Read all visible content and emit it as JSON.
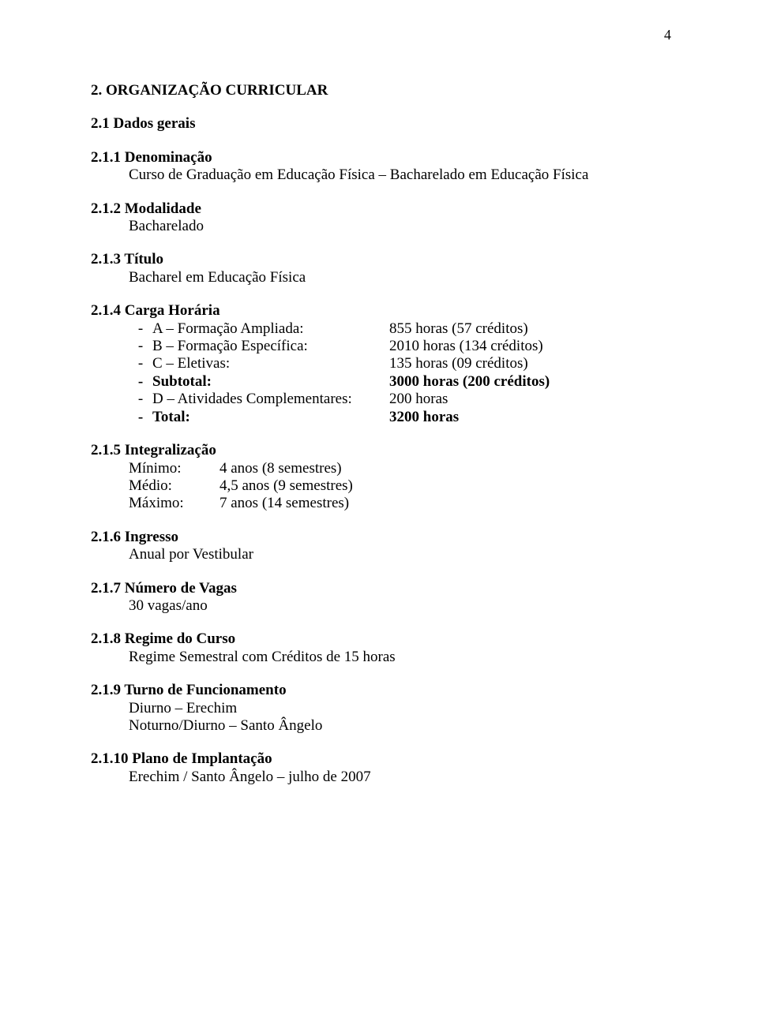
{
  "page_number": "4",
  "title": "2. ORGANIZAÇÃO CURRICULAR",
  "s21": {
    "heading": "2.1 Dados gerais"
  },
  "s211": {
    "heading": "2.1.1 Denominação",
    "text": "Curso de Graduação em Educação Física – Bacharelado em Educação Física"
  },
  "s212": {
    "heading": "2.1.2 Modalidade",
    "text": "Bacharelado"
  },
  "s213": {
    "heading": "2.1.3 Título",
    "text": "Bacharel em Educação Física"
  },
  "s214": {
    "heading": "2.1.4 Carga Horária",
    "rows": [
      {
        "dash": "-",
        "label": "A – Formação Ampliada:",
        "value": "855 horas (57 créditos)"
      },
      {
        "dash": "-",
        "label": "B – Formação Específica:",
        "value": "2010 horas (134 créditos)"
      },
      {
        "dash": "-",
        "label": "C – Eletivas:",
        "value": "135 horas (09 créditos)"
      }
    ],
    "subtotal": {
      "dash": "-",
      "label": "Subtotal:",
      "value": "3000 horas (200 créditos)"
    },
    "row_d": {
      "dash": "-",
      "label": "D – Atividades Complementares:",
      "value": "200 horas"
    },
    "total": {
      "dash": "-",
      "label": "Total:",
      "value": "3200 horas"
    }
  },
  "s215": {
    "heading": "2.1.5 Integralização",
    "rows": [
      {
        "label": "Mínimo:",
        "value": "4 anos (8 semestres)"
      },
      {
        "label": "Médio:",
        "value": "4,5 anos (9 semestres)"
      },
      {
        "label": "Máximo:",
        "value": "7 anos (14 semestres)"
      }
    ]
  },
  "s216": {
    "heading": "2.1.6 Ingresso",
    "text": "Anual por Vestibular"
  },
  "s217": {
    "heading": "2.1.7 Número de Vagas",
    "text": "30 vagas/ano"
  },
  "s218": {
    "heading": "2.1.8 Regime do Curso",
    "text": "Regime Semestral com Créditos de 15 horas"
  },
  "s219": {
    "heading": "2.1.9 Turno de Funcionamento",
    "line1": "Diurno – Erechim",
    "line2": "Noturno/Diurno – Santo Ângelo"
  },
  "s2110": {
    "heading": "2.1.10 Plano de Implantação",
    "text": "Erechim / Santo Ângelo – julho de 2007"
  }
}
